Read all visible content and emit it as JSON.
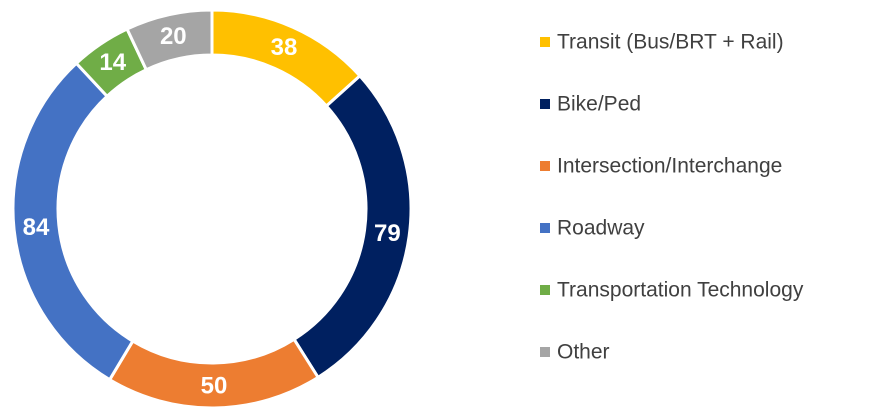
{
  "chart_data": {
    "type": "donut",
    "categories": [
      "Transit (Bus/BRT + Rail)",
      "Bike/Ped",
      "Intersection/Interchange",
      "Roadway",
      "Transportation Technology",
      "Other"
    ],
    "values": [
      38,
      79,
      50,
      84,
      14,
      20
    ],
    "colors": [
      "#FFC000",
      "#002060",
      "#ED7D31",
      "#4472C4",
      "#70AD47",
      "#A5A5A5"
    ],
    "legend": "right"
  }
}
